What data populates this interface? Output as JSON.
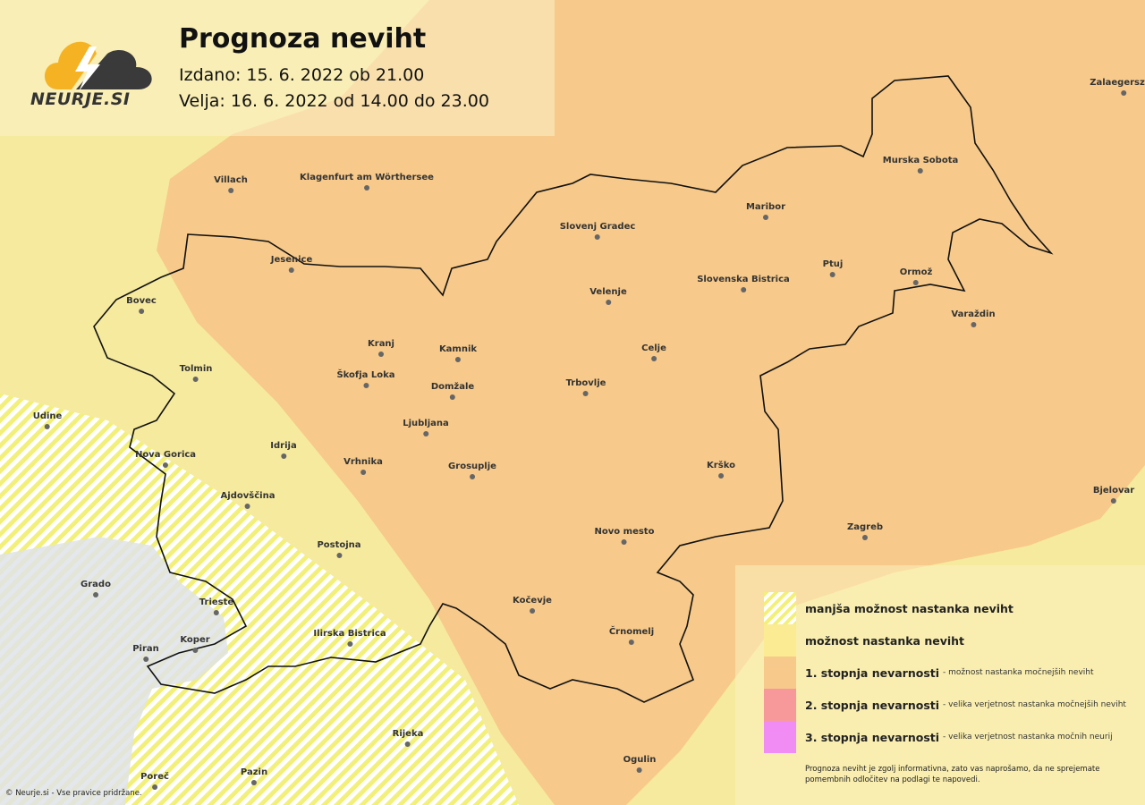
{
  "header": {
    "brand": "NEURJE.SI",
    "title": "Prognoza neviht",
    "issued": "Izdano: 15. 6. 2022 ob 21.00",
    "valid": "Velja: 16. 6. 2022 od 14.00 do 23.00"
  },
  "colors": {
    "lower_chance": "#f3f07a",
    "chance": "#fbeb93",
    "level1": "#f7c98a",
    "level2": "#f7999b",
    "level3": "#f28cf5",
    "sea": "#dfe3e8"
  },
  "cities": [
    "Zalaegerszeg",
    "Murska Sobota",
    "Villach",
    "Klagenfurt am Wörthersee",
    "Maribor",
    "Slovenj Gradec",
    "Jesenice",
    "Ptuj",
    "Ormož",
    "Slovenska Bistrica",
    "Velenje",
    "Bovec",
    "Varaždin",
    "Kranj",
    "Kamnik",
    "Celje",
    "Tolmin",
    "Škofja Loka",
    "Domžale",
    "Trbovlje",
    "Udine",
    "Ljubljana",
    "Idrija",
    "Vrhnika",
    "Nova Gorica",
    "Grosuplje",
    "Krško",
    "Bjelovar",
    "Ajdovščina",
    "Zagreb",
    "Novo mesto",
    "Postojna",
    "Grado",
    "Trieste",
    "Kočevje",
    "Piran",
    "Koper",
    "Ilirska Bistrica",
    "Črnomelj",
    "Rijeka",
    "Ogulin",
    "Poreč",
    "Pazin"
  ],
  "legend": {
    "items": [
      {
        "title": "manjša možnost nastanka neviht",
        "desc": ""
      },
      {
        "title": "možnost nastanka neviht",
        "desc": ""
      },
      {
        "title": "1. stopnja nevarnosti",
        "desc": "- možnost nastanka močnejših neviht"
      },
      {
        "title": "2. stopnja nevarnosti",
        "desc": "- velika verjetnost nastanka močnejših neviht"
      },
      {
        "title": "3. stopnja nevarnosti",
        "desc": "- velika verjetnost nastanka močnih neurij"
      }
    ],
    "note": "Prognoza neviht je zgolj informativna, zato vas naprošamo, da ne sprejemate pomembnih odločitev na podlagi te napovedi."
  },
  "copyright": "© Neurje.si - Vse pravice pridržane."
}
